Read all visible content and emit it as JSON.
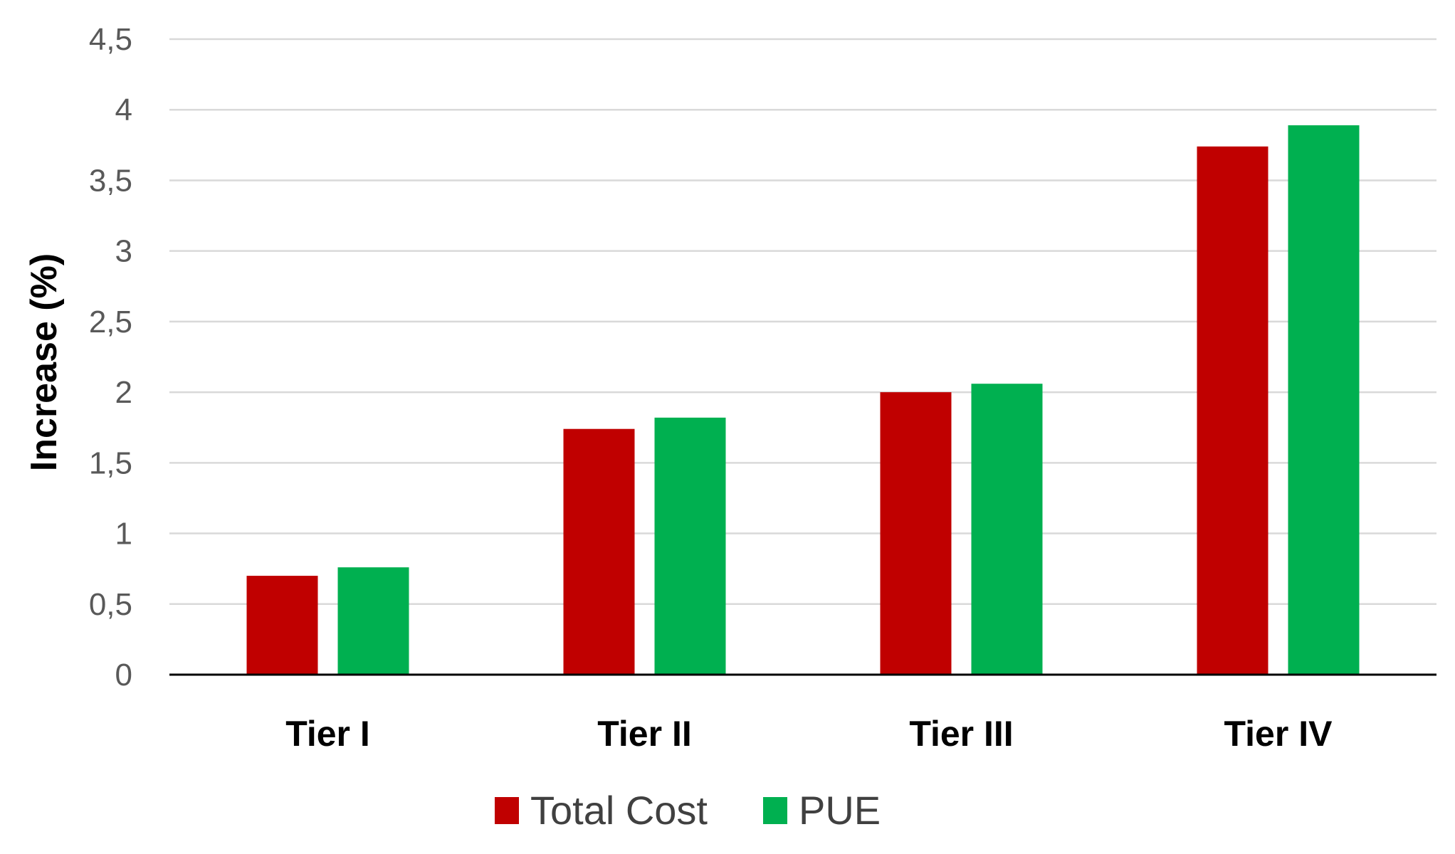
{
  "chart_data": {
    "type": "bar",
    "title": "",
    "xlabel": "",
    "ylabel": "Increase (%)",
    "categories": [
      "Tier I",
      "Tier II",
      "Tier III",
      "Tier IV"
    ],
    "ylim": [
      0,
      4.5
    ],
    "yticks": [
      0,
      0.5,
      1,
      1.5,
      2,
      2.5,
      3,
      3.5,
      4,
      4.5
    ],
    "ytick_labels": [
      "0",
      "0,5",
      "1",
      "1,5",
      "2",
      "2,5",
      "3",
      "3,5",
      "4",
      "4,5"
    ],
    "grid": true,
    "legend_position": "bottom",
    "series": [
      {
        "name": "Total Cost",
        "color": "#c00000",
        "values": [
          0.7,
          1.74,
          2.0,
          3.74
        ]
      },
      {
        "name": "PUE",
        "color": "#00b050",
        "values": [
          0.76,
          1.82,
          2.06,
          3.89
        ]
      }
    ]
  }
}
